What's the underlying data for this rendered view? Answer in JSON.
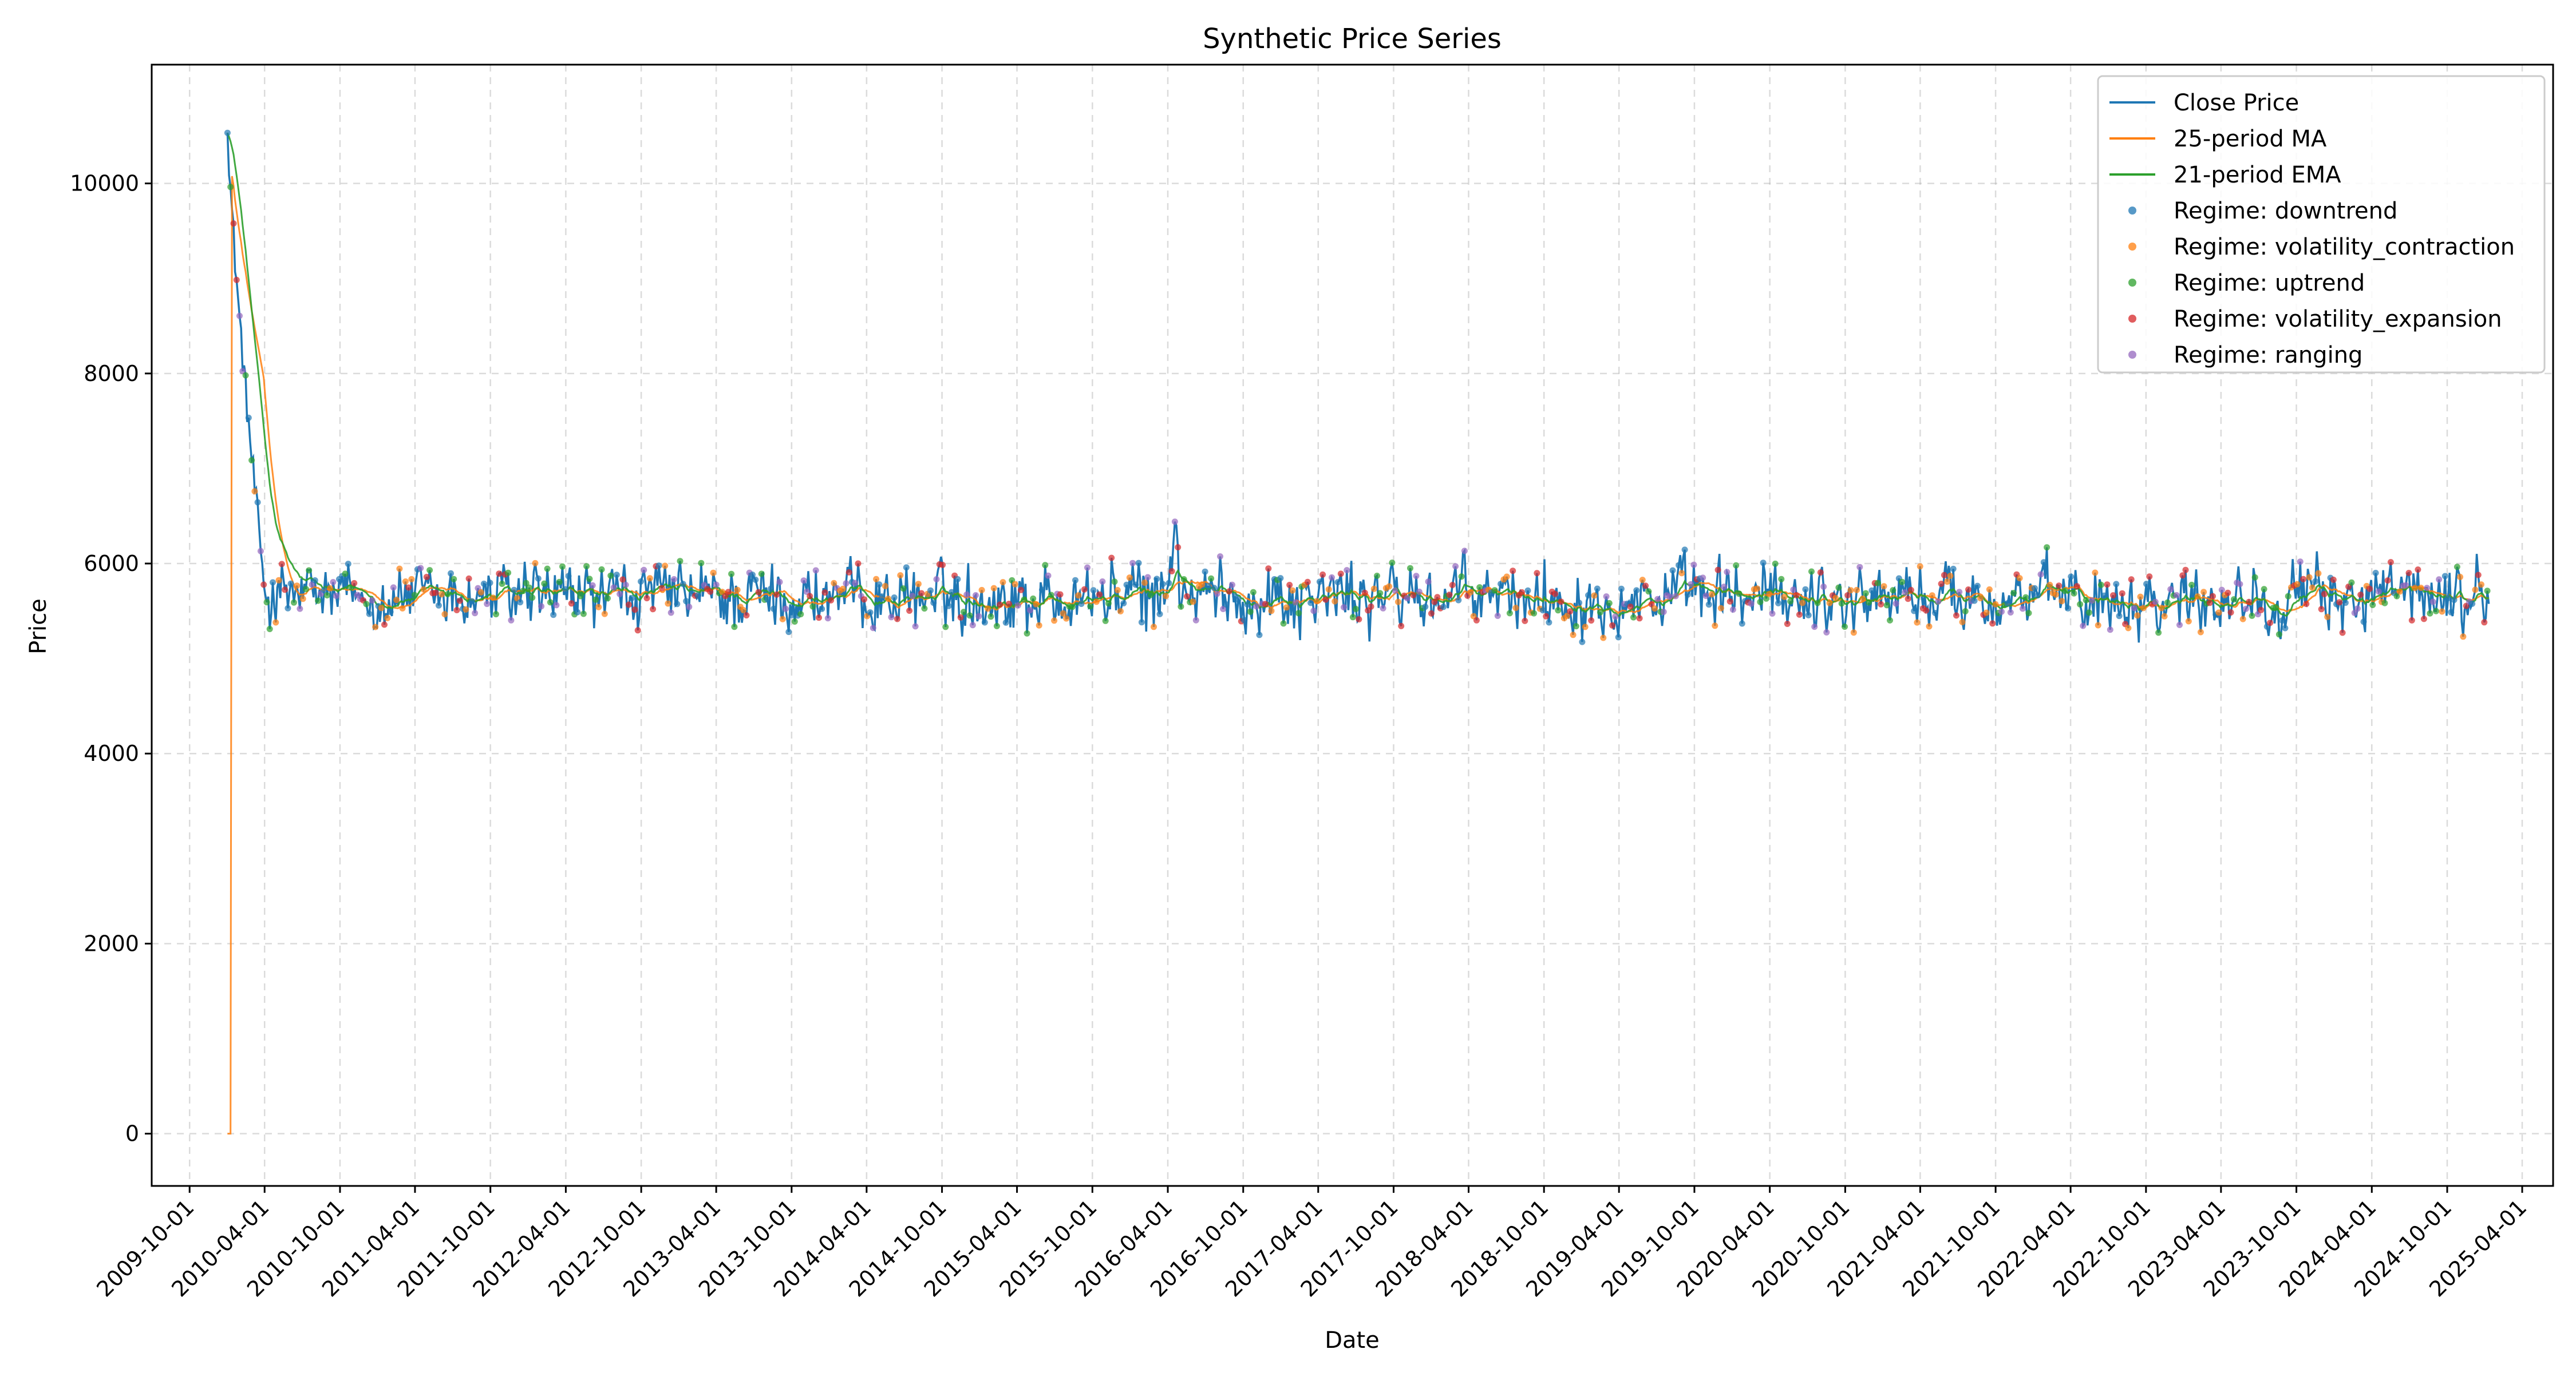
{
  "chart_data": {
    "type": "line",
    "title": "Synthetic Price Series",
    "xlabel": "Date",
    "ylabel": "Price",
    "ylim": [
      -550,
      11250
    ],
    "xlim": [
      "2009-07-01",
      "2025-06-15"
    ],
    "x_ticks": [
      "2009-10-01",
      "2010-04-01",
      "2010-10-01",
      "2011-04-01",
      "2011-10-01",
      "2012-04-01",
      "2012-10-01",
      "2013-04-01",
      "2013-10-01",
      "2014-04-01",
      "2014-10-01",
      "2015-04-01",
      "2015-10-01",
      "2016-04-01",
      "2016-10-01",
      "2017-04-01",
      "2017-10-01",
      "2018-04-01",
      "2018-10-01",
      "2019-04-01",
      "2019-10-01",
      "2020-04-01",
      "2020-10-01",
      "2021-04-01",
      "2021-10-01",
      "2022-04-01",
      "2022-10-01",
      "2023-04-01",
      "2023-10-01",
      "2024-04-01",
      "2024-10-01",
      "2025-04-01"
    ],
    "y_ticks": [
      0,
      2000,
      4000,
      6000,
      8000,
      10000
    ],
    "grid": true,
    "legend_position": "top-right",
    "start_date": "2010-01-01",
    "end_date": "2025-01-10",
    "price_profile": {
      "start_price": 10700,
      "decay_end_date": "2010-04-05",
      "decay_end_price": 5600,
      "steady_mean": 5650,
      "steady_low": 5050,
      "steady_high": 6250,
      "spike": {
        "date": "2016-04-15",
        "price": 6950
      }
    },
    "series": [
      {
        "name": "Close Price",
        "kind": "line",
        "color": "#1f77b4"
      },
      {
        "name": "25-period MA",
        "kind": "line",
        "color": "#ff7f0e",
        "note_start_value": 0
      },
      {
        "name": "21-period EMA",
        "kind": "line",
        "color": "#2ca02c"
      },
      {
        "name": "Regime: downtrend",
        "kind": "scatter",
        "color": "#1f77b4"
      },
      {
        "name": "Regime: volatility_contraction",
        "kind": "scatter",
        "color": "#ff7f0e"
      },
      {
        "name": "Regime: uptrend",
        "kind": "scatter",
        "color": "#2ca02c"
      },
      {
        "name": "Regime: volatility_expansion",
        "kind": "scatter",
        "color": "#d62728"
      },
      {
        "name": "Regime: ranging",
        "kind": "scatter",
        "color": "#9467bd"
      }
    ]
  }
}
